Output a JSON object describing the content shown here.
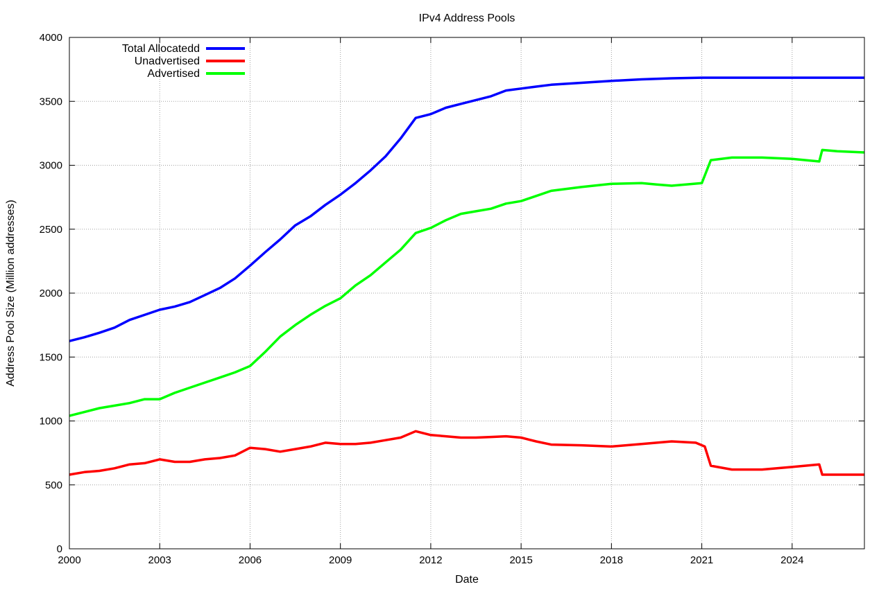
{
  "chart_data": {
    "type": "line",
    "title": "IPv4 Address Pools",
    "xlabel": "Date",
    "ylabel": "Address Pool Size (Million addresses)",
    "xlim": [
      2000.0,
      2026.4
    ],
    "ylim": [
      0,
      4000
    ],
    "x_ticks": [
      2000,
      2003,
      2006,
      2009,
      2012,
      2015,
      2018,
      2021,
      2024
    ],
    "y_ticks": [
      0,
      500,
      1000,
      1500,
      2000,
      2500,
      3000,
      3500,
      4000
    ],
    "grid": true,
    "legend_position": "top-left",
    "series": [
      {
        "name": "Total Allocatedd",
        "color": "#0000ff",
        "x": [
          2000.0,
          2000.5,
          2001.0,
          2001.5,
          2002.0,
          2002.5,
          2003.0,
          2003.5,
          2004.0,
          2004.5,
          2005.0,
          2005.5,
          2006.0,
          2006.5,
          2007.0,
          2007.5,
          2008.0,
          2008.5,
          2009.0,
          2009.5,
          2010.0,
          2010.5,
          2011.0,
          2011.5,
          2012.0,
          2012.5,
          2013.0,
          2013.5,
          2014.0,
          2014.5,
          2015.0,
          2015.5,
          2016.0,
          2017.0,
          2018.0,
          2019.0,
          2020.0,
          2021.0,
          2022.0,
          2023.0,
          2024.0,
          2025.0,
          2026.4
        ],
        "y": [
          1625,
          1655,
          1690,
          1730,
          1790,
          1830,
          1870,
          1895,
          1930,
          1985,
          2040,
          2115,
          2215,
          2320,
          2420,
          2530,
          2600,
          2690,
          2770,
          2860,
          2960,
          3070,
          3210,
          3370,
          3400,
          3450,
          3480,
          3510,
          3540,
          3585,
          3600,
          3615,
          3630,
          3645,
          3660,
          3672,
          3680,
          3685,
          3685,
          3685,
          3685,
          3685,
          3685
        ]
      },
      {
        "name": "Unadvertised",
        "color": "#ff0000",
        "x": [
          2000.0,
          2000.5,
          2001.0,
          2001.5,
          2002.0,
          2002.5,
          2003.0,
          2003.5,
          2004.0,
          2004.5,
          2005.0,
          2005.5,
          2006.0,
          2006.5,
          2007.0,
          2007.5,
          2008.0,
          2008.5,
          2009.0,
          2009.5,
          2010.0,
          2010.5,
          2011.0,
          2011.5,
          2012.0,
          2012.5,
          2013.0,
          2013.5,
          2014.0,
          2014.5,
          2015.0,
          2015.5,
          2016.0,
          2017.0,
          2018.0,
          2019.0,
          2020.0,
          2020.8,
          2021.1,
          2021.3,
          2022.0,
          2023.0,
          2024.0,
          2024.9,
          2025.0,
          2025.5,
          2026.4
        ],
        "y": [
          580,
          600,
          610,
          630,
          660,
          670,
          700,
          680,
          680,
          700,
          710,
          730,
          790,
          780,
          760,
          780,
          800,
          830,
          820,
          820,
          830,
          850,
          870,
          920,
          890,
          880,
          870,
          870,
          875,
          880,
          870,
          840,
          815,
          810,
          800,
          820,
          840,
          830,
          800,
          650,
          620,
          620,
          640,
          660,
          580,
          580,
          580
        ]
      },
      {
        "name": "Advertised",
        "color": "#00ff00",
        "x": [
          2000.0,
          2000.5,
          2001.0,
          2001.5,
          2002.0,
          2002.5,
          2003.0,
          2003.5,
          2004.0,
          2004.5,
          2005.0,
          2005.5,
          2006.0,
          2006.5,
          2007.0,
          2007.5,
          2008.0,
          2008.5,
          2009.0,
          2009.5,
          2010.0,
          2010.5,
          2011.0,
          2011.5,
          2012.0,
          2012.5,
          2013.0,
          2013.5,
          2014.0,
          2014.5,
          2015.0,
          2015.5,
          2016.0,
          2017.0,
          2018.0,
          2019.0,
          2019.5,
          2020.0,
          2021.0,
          2021.3,
          2022.0,
          2023.0,
          2024.0,
          2024.9,
          2025.0,
          2025.5,
          2026.4
        ],
        "y": [
          1040,
          1070,
          1100,
          1120,
          1140,
          1170,
          1170,
          1220,
          1260,
          1300,
          1340,
          1380,
          1430,
          1540,
          1660,
          1750,
          1830,
          1900,
          1960,
          2060,
          2140,
          2240,
          2340,
          2470,
          2510,
          2570,
          2620,
          2640,
          2660,
          2700,
          2720,
          2760,
          2800,
          2830,
          2855,
          2860,
          2850,
          2840,
          2860,
          3040,
          3060,
          3060,
          3050,
          3030,
          3120,
          3110,
          3100
        ]
      }
    ]
  }
}
